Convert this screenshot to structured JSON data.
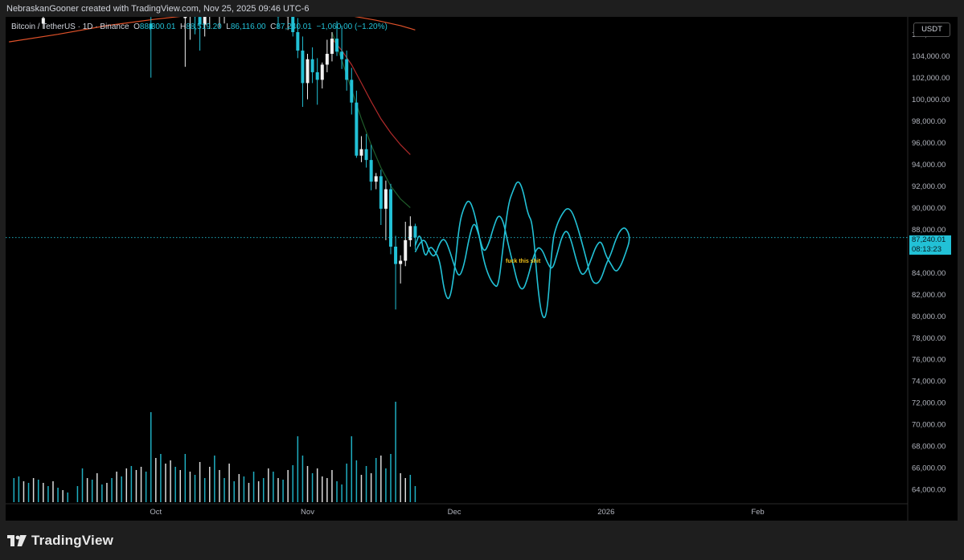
{
  "header": {
    "caption": "NebraskanGooner created with TradingView.com, Nov 25, 2025 09:46 UTC-6"
  },
  "symbol": {
    "name": "Bitcoin / TetherUS · 1D · Binance",
    "open_label": "O",
    "open": "88,300.01",
    "high_label": "H",
    "high": "88,519.20",
    "low_label": "L",
    "low": "86,116.00",
    "close_label": "C",
    "close": "87,240.01",
    "change": "−1,060.00 (−1.20%)"
  },
  "currency": "USDT",
  "last_price": {
    "price": "87,240.01",
    "countdown": "08:13:23"
  },
  "annotation": "fuck this shit",
  "footer": {
    "brand": "TradingView"
  },
  "colors": {
    "up": "#f2f2f2",
    "down": "#22c1d6",
    "drawing": "#22c1d6",
    "ma_red": "#b02a2a",
    "ma_orange": "#e0522a",
    "ma_green": "#1f5c2a",
    "annotation": "#f5c518",
    "background": "#000000"
  },
  "chart_data": {
    "type": "candlestick",
    "ylim": [
      62000,
      108500
    ],
    "y_ticks": [
      106000,
      104000,
      102000,
      100000,
      98000,
      96000,
      94000,
      92000,
      90000,
      88000,
      86000,
      84000,
      82000,
      80000,
      78000,
      76000,
      74000,
      72000,
      70000,
      68000,
      66000,
      64000
    ],
    "y_tick_labels": [
      "106,000.00",
      "104,000.00",
      "102,000.00",
      "100,000.00",
      "98,000.00",
      "96,000.00",
      "94,000.00",
      "92,000.00",
      "90,000.00",
      "88,000.00",
      "86,000.00",
      "84,000.00",
      "82,000.00",
      "80,000.00",
      "78,000.00",
      "76,000.00",
      "74,000.00",
      "72,000.00",
      "70,000.00",
      "68,000.00",
      "66,000.00",
      "64,000.00"
    ],
    "x_labels": [
      {
        "label": "Oct",
        "day": 30
      },
      {
        "label": "Nov",
        "day": 61
      },
      {
        "label": "Dec",
        "day": 91
      },
      {
        "label": "2026",
        "day": 122
      },
      {
        "label": "Feb",
        "day": 153
      }
    ],
    "candles_note": "approximate daily OHLC read from chart; day = days since Sep 1 2025",
    "candles": [
      {
        "day": 7,
        "o": 107000,
        "h": 108000,
        "l": 106500,
        "c": 107500
      },
      {
        "day": 29,
        "o": 107000,
        "h": 107600,
        "l": 102000,
        "c": 106500
      },
      {
        "day": 36,
        "o": 107500,
        "h": 108300,
        "l": 103000,
        "c": 107800
      },
      {
        "day": 37,
        "o": 107800,
        "h": 108400,
        "l": 105500,
        "c": 108200
      },
      {
        "day": 38,
        "o": 108200,
        "h": 108500,
        "l": 106000,
        "c": 107600
      },
      {
        "day": 39,
        "o": 107600,
        "h": 108100,
        "l": 104500,
        "c": 106900
      },
      {
        "day": 40,
        "o": 106900,
        "h": 107900,
        "l": 105800,
        "c": 107700
      },
      {
        "day": 41,
        "o": 107700,
        "h": 108500,
        "l": 106500,
        "c": 108100
      },
      {
        "day": 43,
        "o": 107800,
        "h": 108400,
        "l": 106600,
        "c": 107900
      },
      {
        "day": 44,
        "o": 107900,
        "h": 108500,
        "l": 107000,
        "c": 108200
      },
      {
        "day": 55,
        "o": 108300,
        "h": 108500,
        "l": 106500,
        "c": 107600
      },
      {
        "day": 57,
        "o": 107600,
        "h": 108200,
        "l": 106400,
        "c": 108100
      },
      {
        "day": 58,
        "o": 108100,
        "h": 108500,
        "l": 105800,
        "c": 106200
      },
      {
        "day": 59,
        "o": 106200,
        "h": 107500,
        "l": 103800,
        "c": 104500
      },
      {
        "day": 60,
        "o": 104500,
        "h": 105800,
        "l": 99300,
        "c": 101500
      },
      {
        "day": 61,
        "o": 101500,
        "h": 104200,
        "l": 100000,
        "c": 103700
      },
      {
        "day": 62,
        "o": 103700,
        "h": 104800,
        "l": 101500,
        "c": 102500
      },
      {
        "day": 63,
        "o": 102500,
        "h": 103800,
        "l": 99500,
        "c": 101800
      },
      {
        "day": 64,
        "o": 101800,
        "h": 103400,
        "l": 101000,
        "c": 103200
      },
      {
        "day": 65,
        "o": 103200,
        "h": 105500,
        "l": 102500,
        "c": 104200
      },
      {
        "day": 66,
        "o": 104200,
        "h": 106200,
        "l": 103500,
        "c": 105600
      },
      {
        "day": 67,
        "o": 105600,
        "h": 107200,
        "l": 104000,
        "c": 104400
      },
      {
        "day": 68,
        "o": 104400,
        "h": 106800,
        "l": 102800,
        "c": 103700
      },
      {
        "day": 69,
        "o": 103700,
        "h": 104500,
        "l": 100800,
        "c": 101800
      },
      {
        "day": 70,
        "o": 101800,
        "h": 102900,
        "l": 98600,
        "c": 99700
      },
      {
        "day": 71,
        "o": 99700,
        "h": 100800,
        "l": 94600,
        "c": 94800
      },
      {
        "day": 72,
        "o": 94800,
        "h": 96600,
        "l": 94200,
        "c": 95400
      },
      {
        "day": 73,
        "o": 95400,
        "h": 96800,
        "l": 93700,
        "c": 94400
      },
      {
        "day": 74,
        "o": 94400,
        "h": 95800,
        "l": 91600,
        "c": 92400
      },
      {
        "day": 75,
        "o": 92400,
        "h": 93200,
        "l": 91700,
        "c": 92900
      },
      {
        "day": 76,
        "o": 92900,
        "h": 93500,
        "l": 88400,
        "c": 89900
      },
      {
        "day": 77,
        "o": 89900,
        "h": 92500,
        "l": 87000,
        "c": 91700
      },
      {
        "day": 78,
        "o": 91700,
        "h": 92200,
        "l": 85700,
        "c": 86400
      },
      {
        "day": 79,
        "o": 86400,
        "h": 87400,
        "l": 80600,
        "c": 84800
      },
      {
        "day": 80,
        "o": 84800,
        "h": 85600,
        "l": 83000,
        "c": 85100
      },
      {
        "day": 81,
        "o": 85100,
        "h": 88700,
        "l": 84600,
        "c": 87000
      },
      {
        "day": 82,
        "o": 87000,
        "h": 89200,
        "l": 86400,
        "c": 88300
      },
      {
        "day": 83,
        "o": 88300,
        "h": 88519,
        "l": 86116,
        "c": 87240
      }
    ],
    "moving_averages": [
      {
        "name": "orange",
        "color": "#e0522a",
        "points": [
          [
            0,
            105300
          ],
          [
            10,
            106000
          ],
          [
            20,
            106800
          ],
          [
            30,
            107400
          ],
          [
            40,
            107900
          ],
          [
            50,
            108200
          ],
          [
            55,
            108300
          ],
          [
            60,
            108200
          ],
          [
            65,
            108000
          ],
          [
            70,
            107700
          ],
          [
            75,
            107300
          ],
          [
            80,
            106800
          ],
          [
            83,
            106400
          ]
        ]
      },
      {
        "name": "red",
        "color": "#b02a2a",
        "points": [
          [
            66,
            105600
          ],
          [
            68,
            104500
          ],
          [
            70,
            103200
          ],
          [
            72,
            101500
          ],
          [
            74,
            99800
          ],
          [
            76,
            98200
          ],
          [
            78,
            96900
          ],
          [
            80,
            95800
          ],
          [
            82,
            94900
          ]
        ]
      },
      {
        "name": "green",
        "color": "#1f5c2a",
        "points": [
          [
            66,
            106200
          ],
          [
            68,
            103600
          ],
          [
            70,
            100900
          ],
          [
            72,
            98200
          ],
          [
            74,
            95800
          ],
          [
            76,
            93700
          ],
          [
            78,
            92000
          ],
          [
            80,
            90800
          ],
          [
            82,
            90000
          ]
        ]
      }
    ],
    "volume": [
      {
        "day": 1,
        "v": 30,
        "up": false
      },
      {
        "day": 2,
        "v": 32,
        "up": false
      },
      {
        "day": 3,
        "v": 26,
        "up": true
      },
      {
        "day": 4,
        "v": 24,
        "up": false
      },
      {
        "day": 5,
        "v": 30,
        "up": true
      },
      {
        "day": 6,
        "v": 28,
        "up": false
      },
      {
        "day": 7,
        "v": 24,
        "up": true
      },
      {
        "day": 8,
        "v": 20,
        "up": false
      },
      {
        "day": 9,
        "v": 26,
        "up": true
      },
      {
        "day": 10,
        "v": 18,
        "up": false
      },
      {
        "day": 11,
        "v": 15,
        "up": true
      },
      {
        "day": 12,
        "v": 12,
        "up": false
      },
      {
        "day": 14,
        "v": 20,
        "up": false
      },
      {
        "day": 15,
        "v": 42,
        "up": false
      },
      {
        "day": 16,
        "v": 30,
        "up": true
      },
      {
        "day": 17,
        "v": 28,
        "up": false
      },
      {
        "day": 18,
        "v": 36,
        "up": true
      },
      {
        "day": 19,
        "v": 22,
        "up": false
      },
      {
        "day": 20,
        "v": 24,
        "up": true
      },
      {
        "day": 21,
        "v": 30,
        "up": false
      },
      {
        "day": 22,
        "v": 38,
        "up": true
      },
      {
        "day": 23,
        "v": 32,
        "up": false
      },
      {
        "day": 24,
        "v": 42,
        "up": true
      },
      {
        "day": 25,
        "v": 45,
        "up": false
      },
      {
        "day": 26,
        "v": 40,
        "up": true
      },
      {
        "day": 27,
        "v": 44,
        "up": true
      },
      {
        "day": 28,
        "v": 38,
        "up": false
      },
      {
        "day": 29,
        "v": 112,
        "up": false
      },
      {
        "day": 30,
        "v": 55,
        "up": true
      },
      {
        "day": 31,
        "v": 60,
        "up": false
      },
      {
        "day": 32,
        "v": 48,
        "up": true
      },
      {
        "day": 33,
        "v": 52,
        "up": true
      },
      {
        "day": 34,
        "v": 44,
        "up": false
      },
      {
        "day": 35,
        "v": 40,
        "up": true
      },
      {
        "day": 36,
        "v": 60,
        "up": false
      },
      {
        "day": 37,
        "v": 38,
        "up": true
      },
      {
        "day": 38,
        "v": 34,
        "up": false
      },
      {
        "day": 39,
        "v": 50,
        "up": true
      },
      {
        "day": 40,
        "v": 30,
        "up": false
      },
      {
        "day": 41,
        "v": 44,
        "up": true
      },
      {
        "day": 42,
        "v": 58,
        "up": false
      },
      {
        "day": 43,
        "v": 40,
        "up": true
      },
      {
        "day": 44,
        "v": 30,
        "up": false
      },
      {
        "day": 45,
        "v": 48,
        "up": true
      },
      {
        "day": 46,
        "v": 26,
        "up": false
      },
      {
        "day": 47,
        "v": 35,
        "up": true
      },
      {
        "day": 48,
        "v": 32,
        "up": false
      },
      {
        "day": 49,
        "v": 24,
        "up": true
      },
      {
        "day": 50,
        "v": 38,
        "up": false
      },
      {
        "day": 51,
        "v": 26,
        "up": true
      },
      {
        "day": 52,
        "v": 30,
        "up": false
      },
      {
        "day": 53,
        "v": 42,
        "up": true
      },
      {
        "day": 54,
        "v": 38,
        "up": false
      },
      {
        "day": 55,
        "v": 30,
        "up": true
      },
      {
        "day": 56,
        "v": 28,
        "up": false
      },
      {
        "day": 57,
        "v": 40,
        "up": true
      },
      {
        "day": 58,
        "v": 46,
        "up": false
      },
      {
        "day": 59,
        "v": 82,
        "up": false
      },
      {
        "day": 60,
        "v": 58,
        "up": false
      },
      {
        "day": 61,
        "v": 45,
        "up": true
      },
      {
        "day": 62,
        "v": 36,
        "up": false
      },
      {
        "day": 63,
        "v": 42,
        "up": true
      },
      {
        "day": 64,
        "v": 32,
        "up": true
      },
      {
        "day": 65,
        "v": 30,
        "up": true
      },
      {
        "day": 66,
        "v": 40,
        "up": true
      },
      {
        "day": 67,
        "v": 26,
        "up": false
      },
      {
        "day": 68,
        "v": 22,
        "up": false
      },
      {
        "day": 69,
        "v": 48,
        "up": false
      },
      {
        "day": 70,
        "v": 82,
        "up": false
      },
      {
        "day": 71,
        "v": 52,
        "up": false
      },
      {
        "day": 72,
        "v": 34,
        "up": true
      },
      {
        "day": 73,
        "v": 45,
        "up": false
      },
      {
        "day": 74,
        "v": 36,
        "up": true
      },
      {
        "day": 75,
        "v": 55,
        "up": false
      },
      {
        "day": 76,
        "v": 58,
        "up": true
      },
      {
        "day": 77,
        "v": 42,
        "up": false
      },
      {
        "day": 78,
        "v": 60,
        "up": false
      },
      {
        "day": 79,
        "v": 125,
        "up": false
      },
      {
        "day": 80,
        "v": 36,
        "up": true
      },
      {
        "day": 81,
        "v": 30,
        "up": true
      },
      {
        "day": 82,
        "v": 34,
        "up": false
      },
      {
        "day": 83,
        "v": 20,
        "up": false
      }
    ],
    "drawing_path": [
      [
        83,
        86500
      ],
      [
        84,
        87800
      ],
      [
        85,
        85200
      ],
      [
        86,
        86500
      ],
      [
        87,
        86000
      ],
      [
        88,
        85200
      ],
      [
        89,
        82100
      ],
      [
        90,
        81300
      ],
      [
        91,
        84000
      ],
      [
        92,
        88500
      ],
      [
        93,
        90100
      ],
      [
        94,
        90800
      ],
      [
        95,
        89700
      ],
      [
        96,
        87600
      ],
      [
        97,
        85100
      ],
      [
        98,
        83700
      ],
      [
        99,
        82900
      ],
      [
        100,
        82600
      ],
      [
        101,
        86600
      ],
      [
        102,
        90300
      ],
      [
        103,
        91600
      ],
      [
        104,
        92600
      ],
      [
        105,
        91700
      ],
      [
        106,
        89400
      ],
      [
        107,
        88600
      ],
      [
        108,
        82700
      ],
      [
        109,
        79600
      ],
      [
        110,
        80200
      ],
      [
        111,
        86900
      ],
      [
        112,
        88500
      ],
      [
        113,
        89400
      ],
      [
        114,
        90000
      ],
      [
        115,
        89700
      ],
      [
        116,
        88500
      ],
      [
        117,
        86900
      ],
      [
        118,
        85200
      ],
      [
        119,
        83300
      ],
      [
        120,
        82900
      ],
      [
        121,
        83400
      ],
      [
        122,
        84800
      ],
      [
        123,
        85700
      ],
      [
        124,
        87100
      ],
      [
        125,
        88000
      ],
      [
        126,
        88200
      ],
      [
        127,
        87200
      ],
      [
        126,
        85800
      ],
      [
        125,
        84600
      ],
      [
        124,
        84000
      ],
      [
        123,
        84800
      ],
      [
        122,
        85500
      ],
      [
        121,
        87000
      ],
      [
        120,
        86500
      ],
      [
        119,
        85300
      ],
      [
        118,
        84100
      ],
      [
        117,
        83700
      ],
      [
        116,
        85000
      ],
      [
        115,
        86800
      ],
      [
        114,
        88000
      ],
      [
        113,
        87400
      ],
      [
        112,
        85700
      ],
      [
        111,
        84200
      ],
      [
        110,
        84900
      ],
      [
        109,
        86100
      ],
      [
        108,
        86400
      ],
      [
        107,
        85300
      ],
      [
        106,
        83500
      ],
      [
        105,
        82300
      ],
      [
        104,
        82900
      ],
      [
        103,
        84800
      ],
      [
        102,
        86600
      ],
      [
        101,
        88800
      ],
      [
        100,
        89400
      ],
      [
        99,
        88200
      ],
      [
        98,
        86600
      ],
      [
        97,
        85800
      ],
      [
        96,
        87500
      ],
      [
        95,
        88800
      ],
      [
        94,
        87200
      ],
      [
        93,
        84700
      ],
      [
        92,
        83500
      ],
      [
        91,
        84600
      ],
      [
        90,
        86100
      ],
      [
        89,
        87200
      ],
      [
        88,
        86800
      ],
      [
        87,
        85400
      ],
      [
        86,
        85800
      ],
      [
        85,
        87100
      ],
      [
        84,
        86800
      ],
      [
        83,
        85900
      ]
    ]
  }
}
